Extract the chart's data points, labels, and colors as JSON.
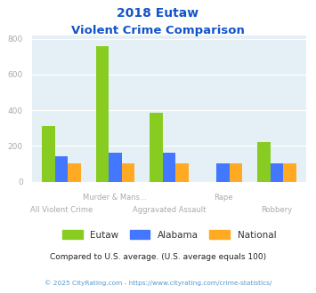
{
  "title_line1": "2018 Eutaw",
  "title_line2": "Violent Crime Comparison",
  "categories": [
    "All Violent Crime",
    "Murder & Mans...",
    "Aggravated Assault",
    "Rape",
    "Robbery"
  ],
  "eutaw": [
    310,
    760,
    385,
    0,
    220
  ],
  "alabama": [
    143,
    163,
    163,
    100,
    100
  ],
  "national": [
    100,
    100,
    100,
    100,
    100
  ],
  "colors": {
    "eutaw": "#88cc22",
    "alabama": "#4477ff",
    "national": "#ffaa22"
  },
  "ylim": [
    0,
    820
  ],
  "yticks": [
    0,
    200,
    400,
    600,
    800
  ],
  "bg_color": "#e4f0f5",
  "title_color": "#1155cc",
  "tick_color": "#aaaaaa",
  "axis_label_color": "#aaaaaa",
  "footnote": "Compared to U.S. average. (U.S. average equals 100)",
  "copyright": "© 2025 CityRating.com - https://www.cityrating.com/crime-statistics/",
  "footnote_color": "#222222",
  "copyright_color": "#5599cc"
}
